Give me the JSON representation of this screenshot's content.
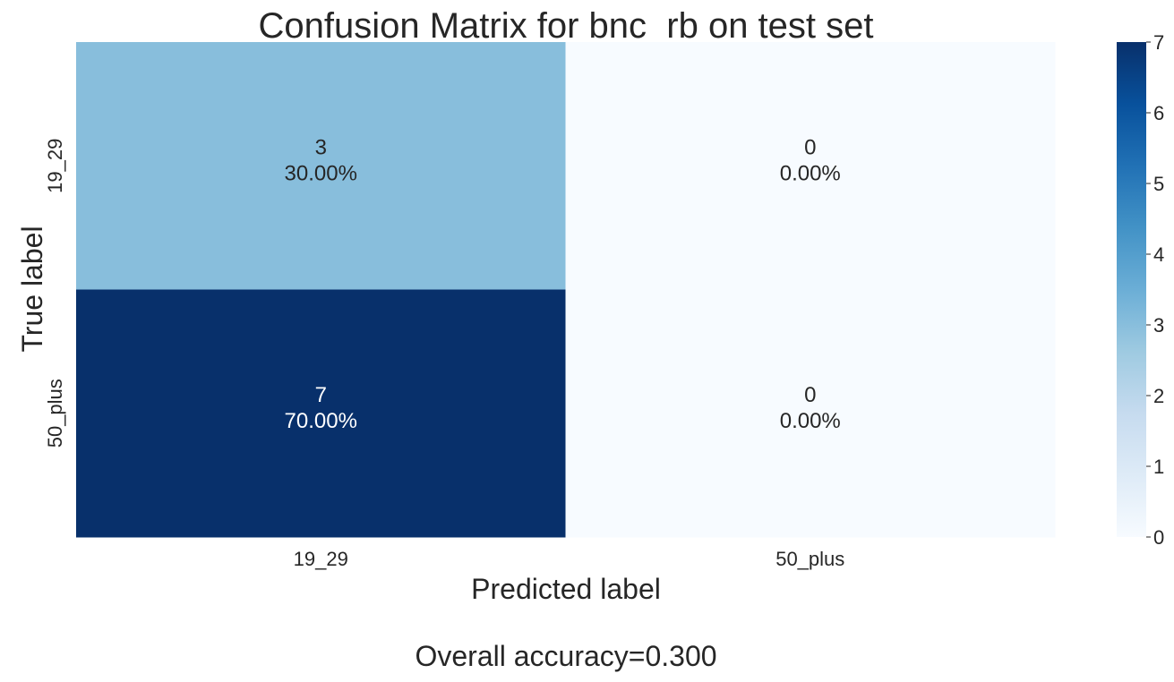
{
  "chart_data": {
    "type": "heatmap",
    "title": "Confusion Matrix for bnc_rb on test set",
    "xlabel": "Predicted label",
    "ylabel": "True label",
    "x_categories": [
      "19_29",
      "50_plus"
    ],
    "y_categories": [
      "19_29",
      "50_plus"
    ],
    "values": [
      [
        3,
        0
      ],
      [
        7,
        0
      ]
    ],
    "cell_labels": [
      [
        "3\n30.00%",
        "0\n0.00%"
      ],
      [
        "7\n70.00%",
        "0\n0.00%"
      ]
    ],
    "colorbar": {
      "colormap": "Blues",
      "min": 0,
      "max": 7,
      "ticks": [
        0,
        1,
        2,
        3,
        4,
        5,
        6,
        7
      ]
    },
    "annotation": "Overall accuracy=0.300",
    "colors": {
      "text_dark": "#262626",
      "text_light": "#ffffff"
    }
  }
}
